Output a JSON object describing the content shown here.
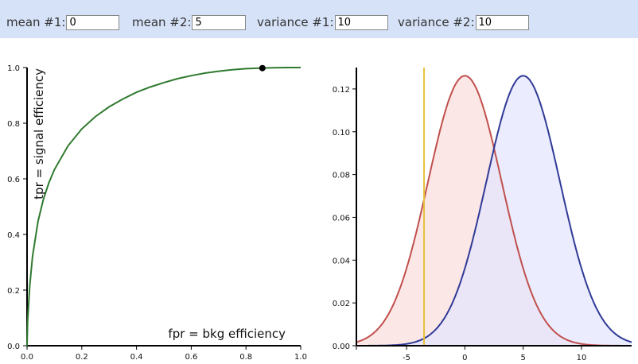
{
  "controls": {
    "mean1_label": "mean #1:",
    "mean1_value": "0",
    "mean2_label": "mean #2:",
    "mean2_value": "5",
    "var1_label": "variance #1:",
    "var1_value": "10",
    "var2_label": "variance #2:",
    "var2_value": "10"
  },
  "colors": {
    "roc": "#2f7a2f",
    "dist1_line": "#c0504d",
    "dist1_fill": "#fbe3e3",
    "dist2_line": "#303a96",
    "dist2_fill": "#e4e6fc",
    "threshold": "#e8c13a"
  },
  "chart_data": [
    {
      "type": "line",
      "xlabel": "fpr = bkg efficiency",
      "ylabel": "tpr = signal efficiency",
      "xlim": [
        0,
        1
      ],
      "ylim": [
        0,
        1
      ],
      "xticks": [
        "0.0",
        "0.2",
        "0.4",
        "0.6",
        "0.8",
        "1.0"
      ],
      "yticks": [
        "0.0",
        "0.2",
        "0.4",
        "0.6",
        "0.8",
        "1.0"
      ],
      "series": [
        {
          "x": [
            0,
            0.002,
            0.01,
            0.02,
            0.04,
            0.06,
            0.08,
            0.1,
            0.15,
            0.2,
            0.25,
            0.3,
            0.35,
            0.4,
            0.45,
            0.5,
            0.55,
            0.6,
            0.65,
            0.7,
            0.75,
            0.8,
            0.85,
            0.9,
            0.95,
            1.0
          ],
          "y": [
            0,
            0.086,
            0.216,
            0.321,
            0.447,
            0.527,
            0.586,
            0.633,
            0.719,
            0.779,
            0.824,
            0.859,
            0.887,
            0.911,
            0.93,
            0.946,
            0.96,
            0.971,
            0.98,
            0.987,
            0.992,
            0.996,
            0.998,
            0.9995,
            1.0,
            1.0
          ]
        }
      ],
      "marker": {
        "x": 0.86,
        "y": 0.998
      }
    },
    {
      "type": "area",
      "xlim": [
        -9.3,
        14.3
      ],
      "ylim": [
        0,
        0.13
      ],
      "xticks": [
        "-5",
        "0",
        "5",
        "10"
      ],
      "yticks": [
        "0.00",
        "0.02",
        "0.04",
        "0.06",
        "0.08",
        "0.10",
        "0.12"
      ],
      "series": [
        {
          "mean": 0,
          "variance": 10
        },
        {
          "mean": 5,
          "variance": 10
        }
      ],
      "threshold_x": -3.5
    }
  ]
}
